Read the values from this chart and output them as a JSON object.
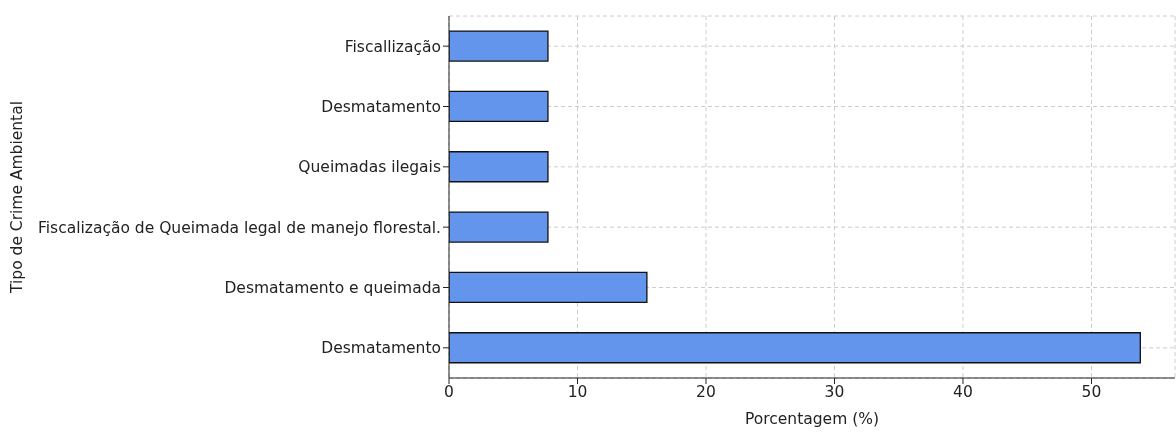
{
  "chart_data": {
    "type": "bar",
    "orientation": "horizontal",
    "categories": [
      "Fiscallização",
      "Desmatamento",
      "Queimadas ilegais",
      "Fiscalização de Queimada legal de manejo florestal.",
      "Desmatamento e queimada",
      "Desmatamento"
    ],
    "values": [
      7.7,
      7.7,
      7.7,
      7.7,
      15.4,
      53.8
    ],
    "color": "#6495ed",
    "xlabel": "Porcentagem (%)",
    "ylabel": "Tipo de Crime Ambiental",
    "xlim": [
      0,
      56.5
    ],
    "xticks": [
      0,
      10,
      20,
      30,
      40,
      50
    ],
    "grid": true
  }
}
